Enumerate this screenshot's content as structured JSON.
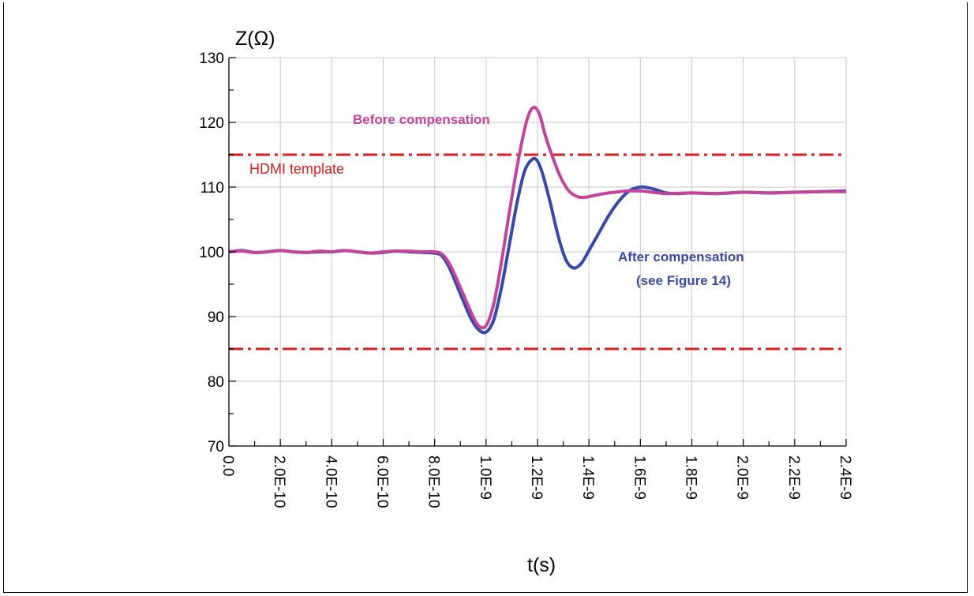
{
  "chart_data": {
    "type": "line",
    "ylabel": "Z(Ω)",
    "xlabel": "t(s)",
    "xlim": [
      0,
      2.4e-09
    ],
    "ylim": [
      70,
      130
    ],
    "x_ticks": [
      0,
      2e-10,
      4e-10,
      6e-10,
      8e-10,
      1e-09,
      1.2e-09,
      1.4e-09,
      1.6e-09,
      1.8e-09,
      2e-09,
      2.2e-09,
      2.4e-09
    ],
    "x_tick_labels": [
      "0.0",
      "2.0E-10",
      "4.0E-10",
      "6.0E-10",
      "8.0E-10",
      "1.0E-9",
      "1.2E-9",
      "1.4E-9",
      "1.6E-9",
      "1.8E-9",
      "2.0E-9",
      "2.2E-9",
      "2.4E-9"
    ],
    "y_ticks": [
      70,
      80,
      90,
      100,
      110,
      120,
      130
    ],
    "y_tick_labels": [
      "70",
      "80",
      "90",
      "100",
      "110",
      "120",
      "130"
    ],
    "grid": true,
    "template_lines": [
      {
        "value": 115,
        "color": "#d42020"
      },
      {
        "value": 85,
        "color": "#d42020"
      }
    ],
    "annotations": {
      "hdmi": "HDMI template",
      "before": "Before compensation",
      "after_line1": "After compensation",
      "after_line2": "(see Figure 14)"
    },
    "series": [
      {
        "color": "#c2449c",
        "x": [
          0,
          5e-11,
          1e-10,
          1.5e-10,
          2e-10,
          2.5e-10,
          3e-10,
          3.5e-10,
          4e-10,
          4.5e-10,
          5e-10,
          5.5e-10,
          6e-10,
          6.5e-10,
          7e-10,
          7.5e-10,
          8e-10,
          8.3e-10,
          8.6e-10,
          9e-10,
          9.4e-10,
          9.7e-10,
          1e-09,
          1.03e-09,
          1.06e-09,
          1.09e-09,
          1.12e-09,
          1.15e-09,
          1.17e-09,
          1.19e-09,
          1.21e-09,
          1.23e-09,
          1.26e-09,
          1.29e-09,
          1.32e-09,
          1.35e-09,
          1.38e-09,
          1.42e-09,
          1.46e-09,
          1.5e-09,
          1.55e-09,
          1.6e-09,
          1.65e-09,
          1.7e-09,
          1.8e-09,
          1.9e-09,
          2e-09,
          2.1e-09,
          2.2e-09,
          2.3e-09,
          2.4e-09
        ],
        "y": [
          100,
          100.1,
          99.9,
          100,
          100.2,
          100,
          99.9,
          100.1,
          100,
          100.2,
          100,
          99.8,
          100,
          100.1,
          100.1,
          100,
          100,
          99.6,
          98,
          94.5,
          90.8,
          88.6,
          88.6,
          92,
          98.5,
          106,
          113,
          119,
          121.6,
          122.3,
          121,
          118,
          114.5,
          111.5,
          109.5,
          108.6,
          108.4,
          108.7,
          109,
          109.2,
          109.4,
          109.4,
          109.2,
          109,
          109.1,
          109,
          109.2,
          109.1,
          109.2,
          109.3,
          109.3
        ]
      },
      {
        "color": "#3848a8",
        "x": [
          0,
          5e-11,
          1e-10,
          1.5e-10,
          2e-10,
          2.5e-10,
          3e-10,
          3.5e-10,
          4e-10,
          4.5e-10,
          5e-10,
          5.5e-10,
          6e-10,
          6.5e-10,
          7e-10,
          7.5e-10,
          8e-10,
          8.3e-10,
          8.6e-10,
          9e-10,
          9.4e-10,
          9.7e-10,
          1e-09,
          1.03e-09,
          1.06e-09,
          1.09e-09,
          1.12e-09,
          1.15e-09,
          1.18e-09,
          1.2e-09,
          1.22e-09,
          1.25e-09,
          1.28e-09,
          1.31e-09,
          1.34e-09,
          1.37e-09,
          1.4e-09,
          1.44e-09,
          1.48e-09,
          1.52e-09,
          1.56e-09,
          1.6e-09,
          1.63e-09,
          1.66e-09,
          1.7e-09,
          1.75e-09,
          1.8e-09,
          1.9e-09,
          2e-09,
          2.1e-09,
          2.2e-09,
          2.3e-09,
          2.4e-09
        ],
        "y": [
          100,
          100.2,
          99.9,
          100,
          100.2,
          100,
          99.9,
          100,
          100,
          100.2,
          100,
          99.8,
          99.9,
          100.1,
          100,
          99.9,
          99.8,
          99.3,
          97.3,
          93.5,
          89.8,
          88,
          87.6,
          89.5,
          94.5,
          101,
          107.5,
          112.5,
          114.3,
          114,
          112,
          107.5,
          102.5,
          98.8,
          97.5,
          98.2,
          100.2,
          103,
          105.8,
          108,
          109.5,
          110,
          109.9,
          109.6,
          109.1,
          109,
          109.1,
          109,
          109.2,
          109.1,
          109.2,
          109.3,
          109.4
        ]
      }
    ]
  }
}
